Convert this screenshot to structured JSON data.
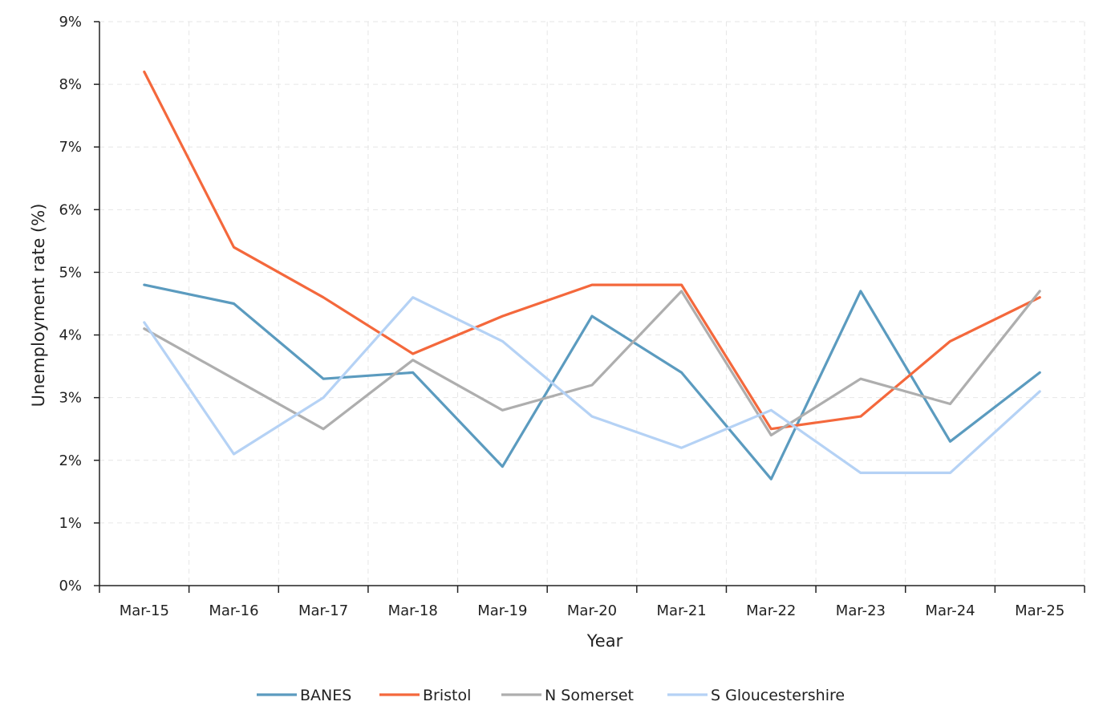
{
  "chart_data": {
    "type": "line",
    "title": "",
    "xlabel": "Year",
    "ylabel": "Unemployment rate (%)",
    "categories": [
      "Mar-15",
      "Mar-16",
      "Mar-17",
      "Mar-18",
      "Mar-19",
      "Mar-20",
      "Mar-21",
      "Mar-22",
      "Mar-23",
      "Mar-24",
      "Mar-25"
    ],
    "ylim": [
      0,
      9
    ],
    "y_ticks": [
      {
        "value": 0,
        "label": "0%"
      },
      {
        "value": 1,
        "label": "1%"
      },
      {
        "value": 2,
        "label": "2%"
      },
      {
        "value": 3,
        "label": "3%"
      },
      {
        "value": 4,
        "label": "4%"
      },
      {
        "value": 5,
        "label": "5%"
      },
      {
        "value": 6,
        "label": "6%"
      },
      {
        "value": 7,
        "label": "7%"
      },
      {
        "value": 8,
        "label": "8%"
      },
      {
        "value": 9,
        "label": "9%"
      }
    ],
    "grid": true,
    "legend_position": "bottom",
    "series": [
      {
        "name": "BANES",
        "color": "#5b9bbf",
        "values": [
          4.8,
          4.5,
          3.3,
          3.4,
          1.9,
          4.3,
          3.4,
          1.7,
          4.7,
          2.3,
          3.4
        ]
      },
      {
        "name": "Bristol",
        "color": "#f4683c",
        "values": [
          8.2,
          5.4,
          4.6,
          3.7,
          4.3,
          4.8,
          4.8,
          2.5,
          2.7,
          3.9,
          4.6
        ]
      },
      {
        "name": "N Somerset",
        "color": "#aeaeae",
        "values": [
          4.1,
          3.3,
          2.5,
          3.6,
          2.8,
          3.2,
          4.7,
          2.4,
          3.3,
          2.9,
          4.7
        ]
      },
      {
        "name": "S Gloucestershire",
        "color": "#b5d2f5",
        "values": [
          4.2,
          2.1,
          3.0,
          4.6,
          3.9,
          2.7,
          2.2,
          2.8,
          1.8,
          1.8,
          3.1
        ]
      }
    ]
  }
}
